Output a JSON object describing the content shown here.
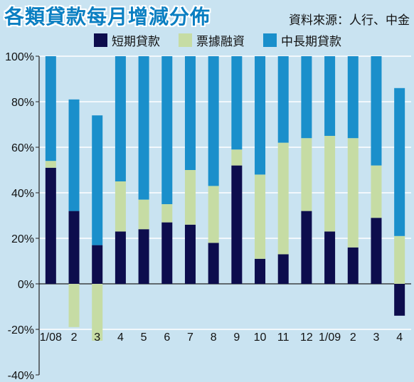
{
  "title": "各類貸款每月增減分佈",
  "source": "資料來源：人行、中金",
  "colors": {
    "short": "#0d0d4d",
    "bill": "#c6dca4",
    "long": "#1a8fcb",
    "grid": "#ffffff",
    "axis": "#222222",
    "background": "#c9e3f1"
  },
  "chart_data": {
    "type": "bar",
    "stacked": true,
    "title": "各類貸款每月增減分佈",
    "legend_position": "top",
    "categories": [
      "1/08",
      "2",
      "3",
      "4",
      "5",
      "6",
      "7",
      "8",
      "9",
      "10",
      "11",
      "12",
      "1/09",
      "2",
      "3",
      "4"
    ],
    "series": [
      {
        "name": "短期貸款",
        "color": "#0d0d4d",
        "values": [
          51,
          32,
          17,
          23,
          24,
          27,
          26,
          18,
          52,
          11,
          13,
          32,
          23,
          16,
          29,
          -14
        ]
      },
      {
        "name": "票據融資",
        "color": "#c6dca4",
        "values": [
          3,
          -19,
          -25,
          22,
          13,
          8,
          24,
          25,
          7,
          37,
          49,
          32,
          42,
          48,
          23,
          21
        ]
      },
      {
        "name": "中長期貸款",
        "color": "#1a8fcb",
        "values": [
          46,
          49,
          57,
          55,
          63,
          65,
          50,
          57,
          41,
          52,
          38,
          36,
          35,
          36,
          48,
          65
        ]
      }
    ],
    "yticks": [
      "100%",
      "80%",
      "60%",
      "40%",
      "20%",
      "0%",
      "-20%",
      "-40%"
    ],
    "ylim": [
      -40,
      100
    ],
    "grid": true
  }
}
